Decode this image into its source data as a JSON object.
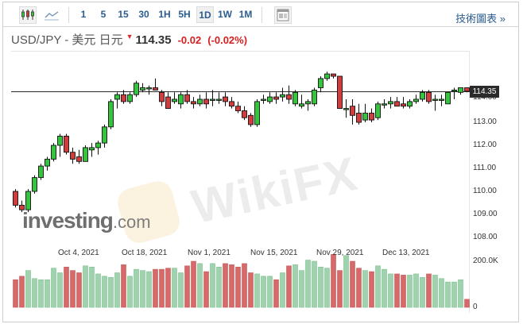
{
  "toolbar": {
    "chart_type_icons": [
      {
        "name": "candlestick-icon",
        "active": true
      },
      {
        "name": "line-chart-icon",
        "active": false
      }
    ],
    "intervals": [
      "1",
      "5",
      "15",
      "30",
      "1H",
      "5H",
      "1D",
      "1W",
      "1M"
    ],
    "active_interval": "1D",
    "layout_icon": "layout-icon",
    "tech_link": "技術圖表 »"
  },
  "header": {
    "symbol": "USD/JPY - 美元 日元",
    "direction": "down",
    "price": "114.35",
    "change": "-0.02",
    "change_pct": "(-0.02%)"
  },
  "axis": {
    "y_labels": [
      "113.00",
      "112.00",
      "111.00",
      "110.00",
      "109.00",
      "108.00"
    ],
    "price_tag": "114.35",
    "volume_labels": [
      "200.0K",
      "0"
    ],
    "x_labels": [
      "Oct 4, 2021",
      "Oct 18, 2021",
      "Nov 1, 2021",
      "Nov 15, 2021",
      "Nov 29, 2021",
      "Dec 13, 2021"
    ]
  },
  "watermarks": {
    "investing": "investing",
    "investing_suffix": ".com",
    "wikifx": "WikiFX"
  },
  "colors": {
    "up": "#35c43c",
    "down": "#d23c3c",
    "vol_up": "#9fd3ad",
    "vol_down": "#d66a6a",
    "link": "#2a5c8f"
  },
  "chart_data": {
    "type": "candlestick",
    "title": "USD/JPY - 美元 日元",
    "xlabel": "",
    "ylabel": "",
    "ylim": [
      107.6,
      115.2
    ],
    "reference_line": 114.35,
    "x_ticks": [
      "Oct 4, 2021",
      "Oct 18, 2021",
      "Nov 1, 2021",
      "Nov 15, 2021",
      "Nov 29, 2021",
      "Dec 13, 2021"
    ],
    "volume_axis": {
      "max_label": "200.0K",
      "min_label": "0"
    },
    "candles": [
      {
        "o": 110.0,
        "h": 110.1,
        "l": 109.3,
        "c": 109.4,
        "v": 120
      },
      {
        "o": 109.4,
        "h": 109.6,
        "l": 109.1,
        "c": 109.2,
        "v": 135
      },
      {
        "o": 109.2,
        "h": 110.1,
        "l": 109.1,
        "c": 110.0,
        "v": 160
      },
      {
        "o": 110.0,
        "h": 110.7,
        "l": 109.9,
        "c": 110.6,
        "v": 125
      },
      {
        "o": 110.6,
        "h": 111.2,
        "l": 110.5,
        "c": 111.1,
        "v": 120
      },
      {
        "o": 111.1,
        "h": 111.5,
        "l": 110.9,
        "c": 111.4,
        "v": 120
      },
      {
        "o": 111.4,
        "h": 112.1,
        "l": 111.3,
        "c": 112.0,
        "v": 170
      },
      {
        "o": 112.0,
        "h": 112.5,
        "l": 111.5,
        "c": 112.4,
        "v": 150
      },
      {
        "o": 112.4,
        "h": 112.5,
        "l": 111.6,
        "c": 111.7,
        "v": 175
      },
      {
        "o": 111.7,
        "h": 111.9,
        "l": 111.2,
        "c": 111.4,
        "v": 160
      },
      {
        "o": 111.5,
        "h": 111.8,
        "l": 111.2,
        "c": 111.3,
        "v": 150
      },
      {
        "o": 111.3,
        "h": 112.0,
        "l": 111.3,
        "c": 111.9,
        "v": 180
      },
      {
        "o": 111.8,
        "h": 112.1,
        "l": 111.5,
        "c": 111.9,
        "v": 175
      },
      {
        "o": 111.9,
        "h": 112.2,
        "l": 111.6,
        "c": 112.1,
        "v": 145
      },
      {
        "o": 112.1,
        "h": 112.9,
        "l": 111.9,
        "c": 112.8,
        "v": 135
      },
      {
        "o": 112.8,
        "h": 114.0,
        "l": 112.7,
        "c": 113.9,
        "v": 130
      },
      {
        "o": 114.0,
        "h": 114.3,
        "l": 113.6,
        "c": 114.2,
        "v": 150
      },
      {
        "o": 114.2,
        "h": 114.4,
        "l": 113.8,
        "c": 113.9,
        "v": 185
      },
      {
        "o": 113.9,
        "h": 114.3,
        "l": 113.8,
        "c": 114.2,
        "v": 135
      },
      {
        "o": 114.2,
        "h": 114.8,
        "l": 114.1,
        "c": 114.7,
        "v": 165
      },
      {
        "o": 114.4,
        "h": 114.7,
        "l": 114.3,
        "c": 114.5,
        "v": 160
      },
      {
        "o": 114.5,
        "h": 114.6,
        "l": 114.2,
        "c": 114.5,
        "v": 155
      },
      {
        "o": 114.5,
        "h": 114.9,
        "l": 114.4,
        "c": 114.4,
        "v": 165
      },
      {
        "o": 114.3,
        "h": 114.4,
        "l": 113.7,
        "c": 113.9,
        "v": 165
      },
      {
        "o": 114.1,
        "h": 114.3,
        "l": 113.6,
        "c": 113.6,
        "v": 170
      },
      {
        "o": 113.9,
        "h": 114.3,
        "l": 113.8,
        "c": 114.0,
        "v": 170
      },
      {
        "o": 113.8,
        "h": 114.3,
        "l": 113.6,
        "c": 114.2,
        "v": 150
      },
      {
        "o": 114.2,
        "h": 114.4,
        "l": 113.8,
        "c": 113.9,
        "v": 180
      },
      {
        "o": 113.9,
        "h": 114.1,
        "l": 113.6,
        "c": 113.8,
        "v": 200
      },
      {
        "o": 113.8,
        "h": 114.2,
        "l": 113.7,
        "c": 114.0,
        "v": 190
      },
      {
        "o": 114.0,
        "h": 114.3,
        "l": 113.6,
        "c": 113.8,
        "v": 155
      },
      {
        "o": 114.0,
        "h": 114.4,
        "l": 113.7,
        "c": 114.0,
        "v": 190
      },
      {
        "o": 114.0,
        "h": 114.3,
        "l": 113.8,
        "c": 114.0,
        "v": 175
      },
      {
        "o": 114.1,
        "h": 114.3,
        "l": 113.7,
        "c": 113.9,
        "v": 190
      },
      {
        "o": 113.9,
        "h": 114.1,
        "l": 113.6,
        "c": 113.7,
        "v": 185
      },
      {
        "o": 113.7,
        "h": 113.9,
        "l": 113.4,
        "c": 113.5,
        "v": 175
      },
      {
        "o": 113.5,
        "h": 113.7,
        "l": 113.1,
        "c": 113.2,
        "v": 190
      },
      {
        "o": 113.3,
        "h": 113.4,
        "l": 112.8,
        "c": 112.9,
        "v": 150
      },
      {
        "o": 112.9,
        "h": 114.0,
        "l": 112.8,
        "c": 113.9,
        "v": 145
      },
      {
        "o": 114.0,
        "h": 114.2,
        "l": 113.8,
        "c": 114.0,
        "v": 135
      },
      {
        "o": 113.9,
        "h": 114.3,
        "l": 113.8,
        "c": 114.1,
        "v": 135
      },
      {
        "o": 114.1,
        "h": 114.3,
        "l": 113.8,
        "c": 114.0,
        "v": 120
      },
      {
        "o": 114.1,
        "h": 114.5,
        "l": 113.9,
        "c": 114.2,
        "v": 150
      },
      {
        "o": 114.2,
        "h": 114.6,
        "l": 113.8,
        "c": 114.0,
        "v": 180
      },
      {
        "o": 113.8,
        "h": 114.4,
        "l": 113.7,
        "c": 114.3,
        "v": 185
      },
      {
        "o": 113.7,
        "h": 114.2,
        "l": 113.6,
        "c": 113.8,
        "v": 160
      },
      {
        "o": 113.8,
        "h": 114.0,
        "l": 113.5,
        "c": 113.9,
        "v": 205
      },
      {
        "o": 113.8,
        "h": 114.5,
        "l": 113.7,
        "c": 114.4,
        "v": 200
      },
      {
        "o": 114.5,
        "h": 115.0,
        "l": 114.3,
        "c": 114.9,
        "v": 175
      },
      {
        "o": 114.9,
        "h": 115.2,
        "l": 114.8,
        "c": 115.1,
        "v": 170
      },
      {
        "o": 115.1,
        "h": 115.1,
        "l": 114.9,
        "c": 115.0,
        "v": 230
      },
      {
        "o": 115.0,
        "h": 115.0,
        "l": 113.6,
        "c": 113.6,
        "v": 160
      },
      {
        "o": 113.6,
        "h": 114.0,
        "l": 113.2,
        "c": 113.6,
        "v": 225
      },
      {
        "o": 113.7,
        "h": 114.0,
        "l": 112.9,
        "c": 113.3,
        "v": 200
      },
      {
        "o": 113.4,
        "h": 113.8,
        "l": 112.9,
        "c": 113.0,
        "v": 170
      },
      {
        "o": 113.1,
        "h": 113.8,
        "l": 113.0,
        "c": 113.4,
        "v": 160
      },
      {
        "o": 113.4,
        "h": 113.6,
        "l": 113.0,
        "c": 113.1,
        "v": 155
      },
      {
        "o": 113.2,
        "h": 113.9,
        "l": 113.1,
        "c": 113.8,
        "v": 180
      },
      {
        "o": 113.8,
        "h": 114.0,
        "l": 113.6,
        "c": 113.8,
        "v": 165
      },
      {
        "o": 113.8,
        "h": 114.1,
        "l": 113.6,
        "c": 113.9,
        "v": 145
      },
      {
        "o": 113.9,
        "h": 114.1,
        "l": 113.7,
        "c": 113.7,
        "v": 145
      },
      {
        "o": 113.8,
        "h": 114.1,
        "l": 113.6,
        "c": 113.7,
        "v": 140
      },
      {
        "o": 113.7,
        "h": 114.0,
        "l": 113.6,
        "c": 113.9,
        "v": 140
      },
      {
        "o": 113.9,
        "h": 114.2,
        "l": 113.8,
        "c": 114.0,
        "v": 145
      },
      {
        "o": 114.0,
        "h": 114.4,
        "l": 113.9,
        "c": 114.3,
        "v": 130
      },
      {
        "o": 114.3,
        "h": 114.4,
        "l": 113.8,
        "c": 113.9,
        "v": 145
      },
      {
        "o": 114.0,
        "h": 114.2,
        "l": 113.5,
        "c": 114.0,
        "v": 140
      },
      {
        "o": 114.0,
        "h": 114.2,
        "l": 113.7,
        "c": 114.0,
        "v": 125
      },
      {
        "o": 113.8,
        "h": 114.3,
        "l": 113.8,
        "c": 114.3,
        "v": 110
      },
      {
        "o": 114.4,
        "h": 114.5,
        "l": 114.0,
        "c": 114.4,
        "v": 110
      },
      {
        "o": 114.3,
        "h": 114.5,
        "l": 114.2,
        "c": 114.5,
        "v": 120
      },
      {
        "o": 114.5,
        "h": 114.5,
        "l": 114.3,
        "c": 114.35,
        "v": 35
      }
    ]
  }
}
